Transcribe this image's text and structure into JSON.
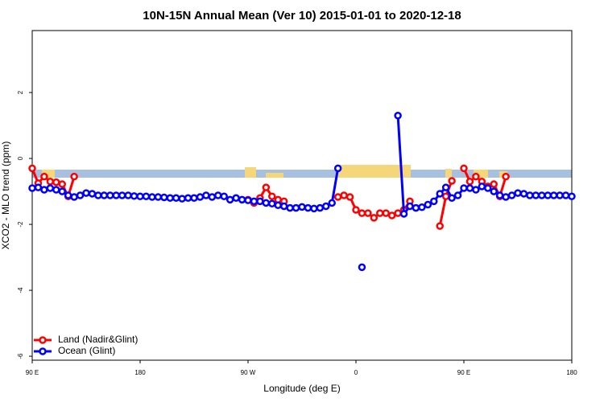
{
  "chart_data": {
    "type": "line",
    "title": "10N-15N Annual Mean (Ver 10)   2015-01-01 to 2020-12-18",
    "xlabel": "Longitude (deg E)",
    "ylabel": "XCO2 - MLO trend (ppm)",
    "xlim": [
      90,
      540
    ],
    "ylim": [
      -6.12,
      3.88
    ],
    "xticks": [
      {
        "value": 90,
        "label": "90 E"
      },
      180,
      {
        "value": 270,
        "label": "90 W"
      },
      {
        "value": 360,
        "label": "0"
      },
      {
        "value": 450,
        "label": "90 E"
      },
      {
        "value": 540,
        "label": "180"
      }
    ],
    "yticks": [
      2,
      0,
      -2,
      -4,
      -6
    ],
    "legend": "bottom-left",
    "x": [
      90,
      95,
      100,
      105,
      110,
      115,
      120,
      125,
      130,
      135,
      140,
      145,
      150,
      155,
      160,
      165,
      170,
      175,
      180,
      185,
      190,
      195,
      200,
      205,
      210,
      215,
      220,
      225,
      230,
      235,
      240,
      245,
      250,
      255,
      260,
      265,
      270,
      275,
      280,
      285,
      290,
      295,
      300,
      305,
      310,
      315,
      320,
      325,
      330,
      335,
      340,
      345,
      350,
      355,
      360,
      365,
      370,
      375,
      380,
      385,
      390,
      395,
      400,
      405,
      410,
      415,
      420,
      425,
      430,
      435,
      440,
      445,
      450,
      455,
      460,
      465,
      470,
      475,
      480,
      485,
      490,
      495,
      500,
      505,
      510,
      515,
      520,
      525,
      530,
      535,
      540
    ],
    "series": [
      {
        "name": "Land (Nadir&Glint)",
        "color": "#ff0000",
        "values": [
          -0.3,
          -0.75,
          -0.55,
          -0.7,
          -0.72,
          -0.78,
          -1.15,
          -0.55,
          null,
          null,
          null,
          null,
          null,
          null,
          null,
          null,
          null,
          null,
          null,
          null,
          null,
          null,
          null,
          null,
          null,
          null,
          null,
          null,
          null,
          null,
          null,
          null,
          null,
          null,
          null,
          null,
          -1.25,
          -1.35,
          -1.2,
          -0.88,
          -1.15,
          -1.25,
          -1.3,
          null,
          null,
          null,
          null,
          null,
          null,
          null,
          null,
          -1.17,
          -1.12,
          -1.17,
          -1.56,
          -1.66,
          -1.66,
          -1.8,
          -1.66,
          -1.66,
          -1.73,
          -1.66,
          -1.56,
          -1.3,
          null,
          null,
          null,
          null,
          -2.05,
          -1.15,
          -0.68,
          null,
          -0.3,
          -0.7,
          -0.55,
          -0.7,
          -0.85,
          -0.78,
          -1.15,
          -0.55,
          null,
          null,
          null,
          null,
          null,
          null,
          null,
          null,
          null,
          null,
          null
        ]
      },
      {
        "name": "Ocean (Glint)",
        "color": "#0000ff",
        "values": [
          -0.9,
          -0.88,
          -0.95,
          -0.9,
          -0.95,
          -1.0,
          -1.12,
          -1.17,
          -1.12,
          -1.05,
          -1.07,
          -1.12,
          -1.12,
          -1.12,
          -1.12,
          -1.12,
          -1.12,
          -1.14,
          -1.15,
          -1.15,
          -1.17,
          -1.17,
          -1.18,
          -1.2,
          -1.2,
          -1.22,
          -1.2,
          -1.2,
          -1.17,
          -1.12,
          -1.17,
          -1.12,
          -1.15,
          -1.25,
          -1.2,
          -1.25,
          -1.27,
          -1.3,
          -1.3,
          -1.35,
          -1.37,
          -1.42,
          -1.45,
          -1.5,
          -1.5,
          -1.47,
          -1.5,
          -1.52,
          -1.5,
          -1.45,
          -1.35,
          -0.3,
          null,
          null,
          null,
          -3.3,
          null,
          null,
          null,
          null,
          null,
          1.3,
          -1.68,
          -1.45,
          -1.5,
          -1.48,
          -1.4,
          -1.3,
          -1.07,
          -0.88,
          -1.2,
          -1.12,
          -0.9,
          -0.9,
          -0.95,
          -0.85,
          -0.9,
          -1.0,
          -1.12,
          -1.17,
          -1.12,
          -1.05,
          -1.07,
          -1.12,
          -1.12,
          -1.12,
          -1.12,
          -1.12,
          -1.12,
          -1.12,
          -1.15
        ]
      }
    ]
  }
}
